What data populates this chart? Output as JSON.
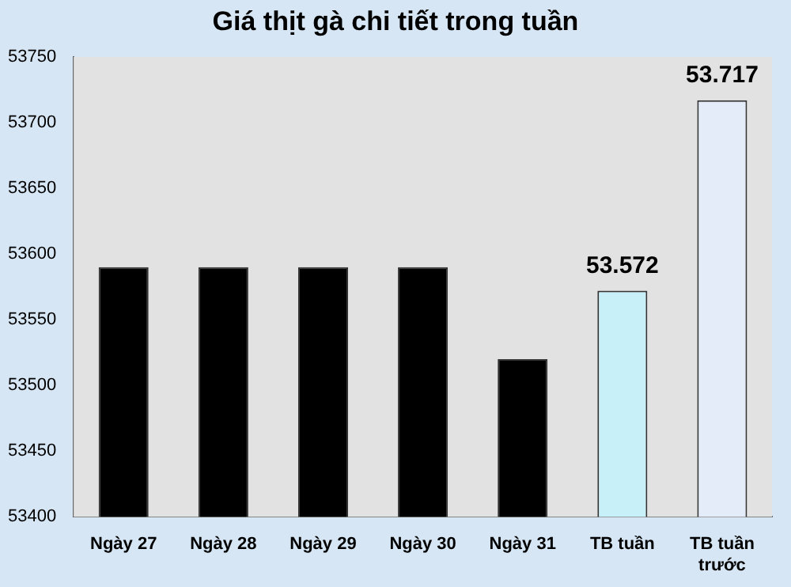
{
  "chart_data": {
    "type": "bar",
    "title": "Giá thịt gà chi tiết trong tuần",
    "categories": [
      "Ngày 27",
      "Ngày 28",
      "Ngày 29",
      "Ngày 30",
      "Ngày 31",
      "TB tuần",
      "TB tuần trước"
    ],
    "values": [
      53590,
      53590,
      53590,
      53590,
      53520,
      53572,
      53717
    ],
    "colors": [
      "#000000",
      "#000000",
      "#000000",
      "#000000",
      "#000000",
      "#c8f0f8",
      "#e4ecfa"
    ],
    "value_labels": [
      null,
      null,
      null,
      null,
      null,
      "53.572",
      "53.717"
    ],
    "ylim": [
      53400,
      53750
    ],
    "yticks": [
      53400,
      53450,
      53500,
      53550,
      53600,
      53650,
      53700,
      53750
    ],
    "grid": false,
    "legend": false
  }
}
